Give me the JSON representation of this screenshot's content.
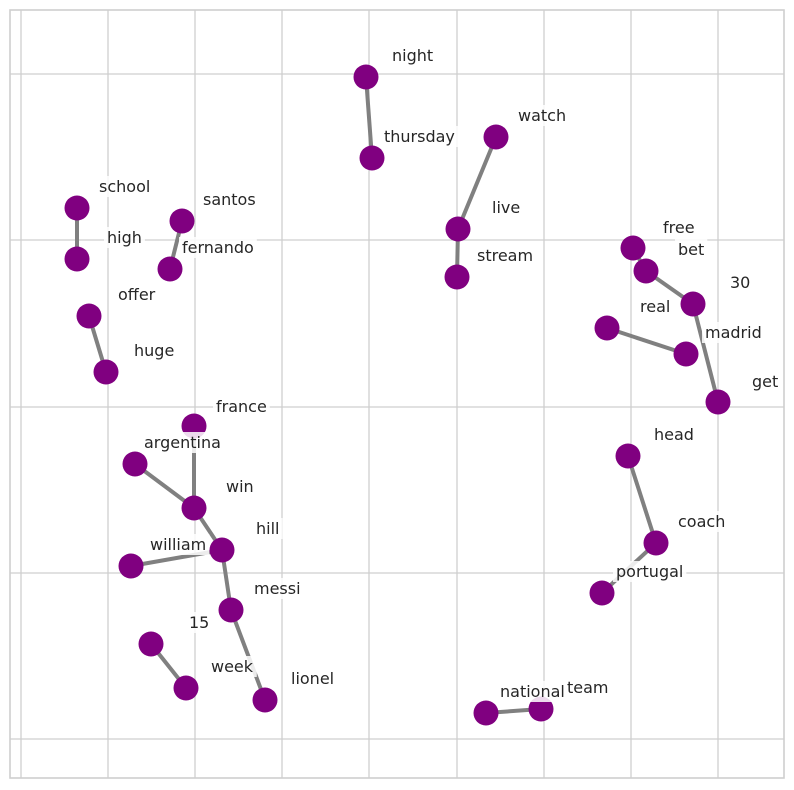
{
  "graph": {
    "node_color": "#800080",
    "edge_color": "#808080",
    "nodes": [
      {
        "id": "night",
        "label": "night"
      },
      {
        "id": "thursday",
        "label": "thursday"
      },
      {
        "id": "watch",
        "label": "watch"
      },
      {
        "id": "live",
        "label": "live"
      },
      {
        "id": "stream",
        "label": "stream"
      },
      {
        "id": "school",
        "label": "school"
      },
      {
        "id": "high",
        "label": "high"
      },
      {
        "id": "santos",
        "label": "santos"
      },
      {
        "id": "fernando",
        "label": "fernando"
      },
      {
        "id": "offer",
        "label": "offer"
      },
      {
        "id": "huge",
        "label": "huge"
      },
      {
        "id": "free",
        "label": "free"
      },
      {
        "id": "bet",
        "label": "bet"
      },
      {
        "id": "30",
        "label": "30"
      },
      {
        "id": "real",
        "label": "real"
      },
      {
        "id": "madrid",
        "label": "madrid"
      },
      {
        "id": "get",
        "label": "get"
      },
      {
        "id": "france",
        "label": "france"
      },
      {
        "id": "argentina",
        "label": "argentina"
      },
      {
        "id": "win",
        "label": "win"
      },
      {
        "id": "hill",
        "label": "hill"
      },
      {
        "id": "william",
        "label": "william"
      },
      {
        "id": "messi",
        "label": "messi"
      },
      {
        "id": "lionel",
        "label": "lionel"
      },
      {
        "id": "15",
        "label": "15"
      },
      {
        "id": "week",
        "label": "week"
      },
      {
        "id": "head",
        "label": "head"
      },
      {
        "id": "coach",
        "label": "coach"
      },
      {
        "id": "portugal",
        "label": "portugal"
      },
      {
        "id": "national",
        "label": "national"
      },
      {
        "id": "team",
        "label": "team"
      }
    ],
    "edges": [
      [
        "night",
        "thursday"
      ],
      [
        "watch",
        "live"
      ],
      [
        "live",
        "stream"
      ],
      [
        "school",
        "high"
      ],
      [
        "santos",
        "fernando"
      ],
      [
        "offer",
        "huge"
      ],
      [
        "free",
        "bet"
      ],
      [
        "bet",
        "30"
      ],
      [
        "30",
        "get"
      ],
      [
        "real",
        "madrid"
      ],
      [
        "france",
        "win"
      ],
      [
        "argentina",
        "win"
      ],
      [
        "win",
        "hill"
      ],
      [
        "william",
        "hill"
      ],
      [
        "hill",
        "messi"
      ],
      [
        "messi",
        "lionel"
      ],
      [
        "15",
        "week"
      ],
      [
        "head",
        "coach"
      ],
      [
        "coach",
        "portugal"
      ],
      [
        "national",
        "team"
      ]
    ]
  }
}
